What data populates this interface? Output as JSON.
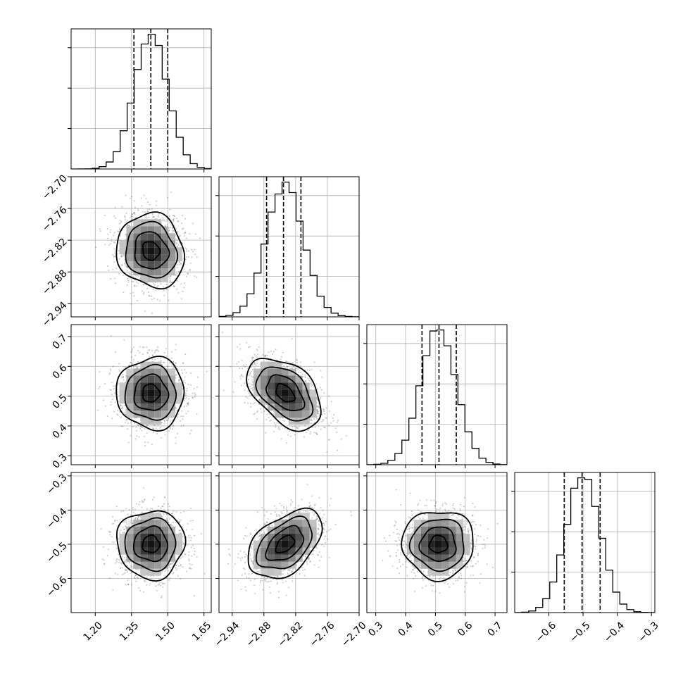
{
  "chart_data": {
    "type": "corner",
    "grid": true,
    "n_params": 4,
    "parameters": [
      {
        "mean": 1.43,
        "sd": 0.07,
        "quantiles": [
          1.36,
          1.43,
          1.5
        ],
        "range": [
          1.1,
          1.68
        ],
        "ticks": [
          1.2,
          1.35,
          1.5,
          1.65
        ],
        "tick_labels": [
          "1.20",
          "1.35",
          "1.50",
          "1.65"
        ]
      },
      {
        "mean": -2.84,
        "sd": 0.035,
        "quantiles": [
          -2.875,
          -2.843,
          -2.81
        ],
        "range": [
          -2.965,
          -2.7
        ],
        "ticks": [
          -2.94,
          -2.88,
          -2.82,
          -2.76,
          -2.7
        ],
        "tick_labels": [
          "−2.94",
          "−2.88",
          "−2.82",
          "−2.76",
          "−2.70"
        ]
      },
      {
        "mean": 0.51,
        "sd": 0.06,
        "quantiles": [
          0.455,
          0.512,
          0.57
        ],
        "range": [
          0.27,
          0.74
        ],
        "ticks": [
          0.3,
          0.4,
          0.5,
          0.6,
          0.7
        ],
        "tick_labels": [
          "0.3",
          "0.4",
          "0.5",
          "0.6",
          "0.7"
        ]
      },
      {
        "mean": -0.5,
        "sd": 0.05,
        "quantiles": [
          -0.555,
          -0.503,
          -0.45
        ],
        "range": [
          -0.7,
          -0.29
        ],
        "ticks": [
          -0.6,
          -0.5,
          -0.4,
          -0.3
        ],
        "tick_labels": [
          "−0.6",
          "−0.5",
          "−0.4",
          "−0.3"
        ]
      }
    ],
    "correlations": [
      [
        1.0,
        -0.1,
        0.0,
        0.0
      ],
      [
        -0.1,
        1.0,
        -0.45,
        0.45
      ],
      [
        0.0,
        -0.45,
        1.0,
        0.0
      ],
      [
        0.0,
        0.45,
        0.0,
        1.0
      ]
    ],
    "histogram_bins": 20,
    "contour_levels": [
      0.5,
      1.0,
      1.5,
      2.0
    ]
  }
}
